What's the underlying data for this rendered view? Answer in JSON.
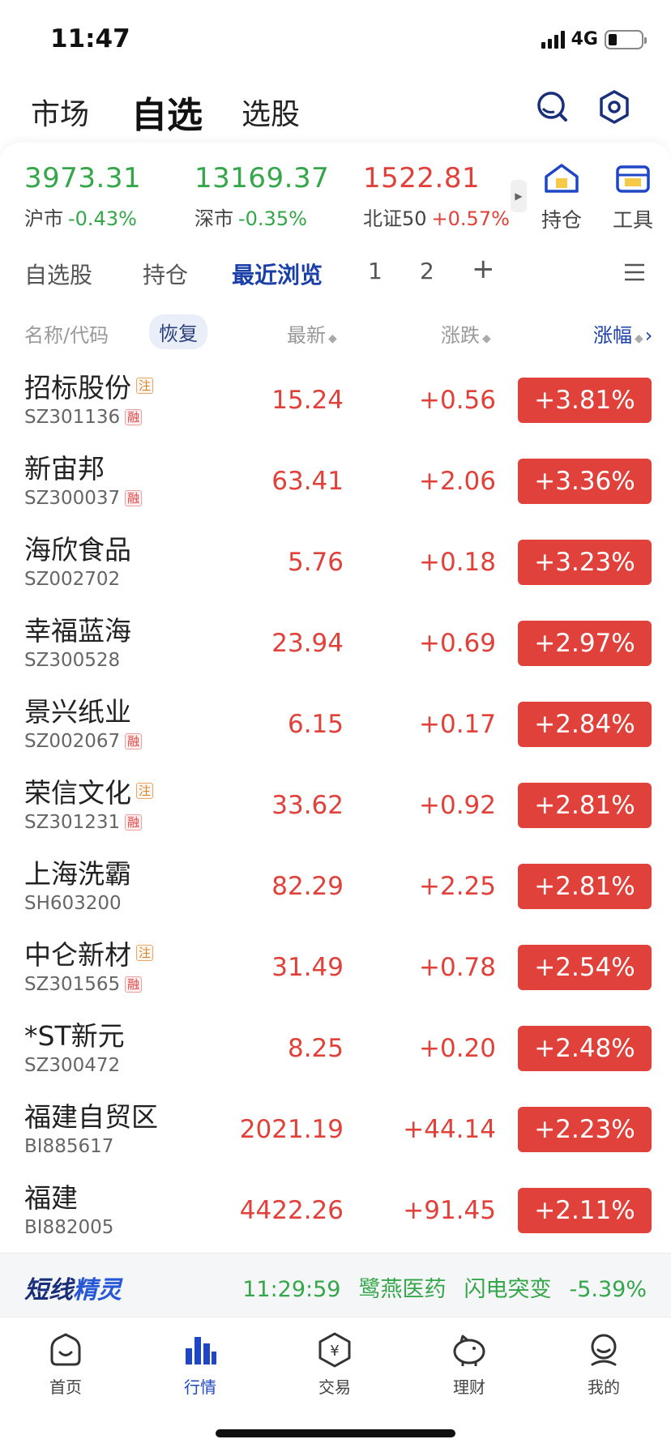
{
  "status_bar": {
    "time": "11:47",
    "network": "4G"
  },
  "top_nav": {
    "tabs": [
      "市场",
      "自选",
      "选股"
    ],
    "active": "自选"
  },
  "indices": [
    {
      "value": "3973.31",
      "name": "沪市",
      "change": "-0.43%",
      "color": "#35a64a"
    },
    {
      "value": "13169.37",
      "name": "深市",
      "change": "-0.35%",
      "color": "#35a64a"
    },
    {
      "value": "1522.81",
      "name": "北证50",
      "change": "+0.57%",
      "color": "#e0413a"
    }
  ],
  "quick_tools": {
    "holdings": "持仓",
    "tools": "工具"
  },
  "sub_tabs": [
    "自选股",
    "持仓",
    "最近浏览",
    "1",
    "2",
    "+"
  ],
  "columns": {
    "name": "名称/代码",
    "restore": "恢复",
    "latest": "最新",
    "change": "涨跌",
    "pct": "涨幅"
  },
  "stocks": [
    {
      "name": "招标股份",
      "code": "SZ301136",
      "zhu": "注",
      "rong": "融",
      "price": "15.24",
      "change": "+0.56",
      "pct": "+3.81%"
    },
    {
      "name": "新宙邦",
      "code": "SZ300037",
      "zhu": "",
      "rong": "融",
      "price": "63.41",
      "change": "+2.06",
      "pct": "+3.36%"
    },
    {
      "name": "海欣食品",
      "code": "SZ002702",
      "zhu": "",
      "rong": "",
      "price": "5.76",
      "change": "+0.18",
      "pct": "+3.23%"
    },
    {
      "name": "幸福蓝海",
      "code": "SZ300528",
      "zhu": "",
      "rong": "",
      "price": "23.94",
      "change": "+0.69",
      "pct": "+2.97%"
    },
    {
      "name": "景兴纸业",
      "code": "SZ002067",
      "zhu": "",
      "rong": "融",
      "price": "6.15",
      "change": "+0.17",
      "pct": "+2.84%"
    },
    {
      "name": "荣信文化",
      "code": "SZ301231",
      "zhu": "注",
      "rong": "融",
      "price": "33.62",
      "change": "+0.92",
      "pct": "+2.81%"
    },
    {
      "name": "上海洗霸",
      "code": "SH603200",
      "zhu": "",
      "rong": "",
      "price": "82.29",
      "change": "+2.25",
      "pct": "+2.81%"
    },
    {
      "name": "中仑新材",
      "code": "SZ301565",
      "zhu": "注",
      "rong": "融",
      "price": "31.49",
      "change": "+0.78",
      "pct": "+2.54%"
    },
    {
      "name": "*ST新元",
      "code": "SZ300472",
      "zhu": "",
      "rong": "",
      "price": "8.25",
      "change": "+0.20",
      "pct": "+2.48%"
    },
    {
      "name": "福建自贸区",
      "code": "BI885617",
      "zhu": "",
      "rong": "",
      "price": "2021.19",
      "change": "+44.14",
      "pct": "+2.23%"
    },
    {
      "name": "福建",
      "code": "BI882005",
      "zhu": "",
      "rong": "",
      "price": "4422.26",
      "change": "+91.45",
      "pct": "+2.11%"
    }
  ],
  "ticker": {
    "logo_a": "短线",
    "logo_b": "精灵",
    "time": "11:29:59",
    "stock": "鹭燕医药",
    "event": "闪电突变",
    "pct": "-5.39%"
  },
  "bottom_nav": [
    "首页",
    "行情",
    "交易",
    "理财",
    "我的"
  ],
  "colors": {
    "up": "#e0413a",
    "down": "#35a64a",
    "accent": "#1a3fa8"
  }
}
